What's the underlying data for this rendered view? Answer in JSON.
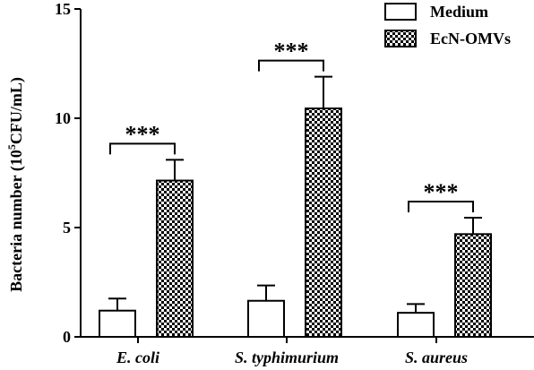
{
  "chart_data": {
    "type": "bar",
    "categories": [
      "E. coli",
      "S. typhimurium",
      "S. aureus"
    ],
    "series": [
      {
        "name": "Medium",
        "values": [
          1.2,
          1.65,
          1.1
        ],
        "errors": [
          0.55,
          0.7,
          0.4
        ],
        "fill": "white"
      },
      {
        "name": "EcN-OMVs",
        "values": [
          7.15,
          10.45,
          4.7
        ],
        "errors": [
          0.95,
          1.45,
          0.75
        ],
        "fill": "checker"
      }
    ],
    "ylabel": "Bacteria number (10⁵CFU/mL)",
    "ylabel_main": "Bacteria number (10",
    "ylabel_sup": "5",
    "ylabel_end": "CFU/mL)",
    "ylim": [
      0,
      15
    ],
    "yticks": [
      0,
      5,
      10,
      15
    ],
    "significance": [
      "***",
      "***",
      "***"
    ],
    "legend_position": "top-right",
    "colors": {
      "axis": "#000000",
      "pattern": "#000000",
      "background": "#ffffff"
    }
  }
}
